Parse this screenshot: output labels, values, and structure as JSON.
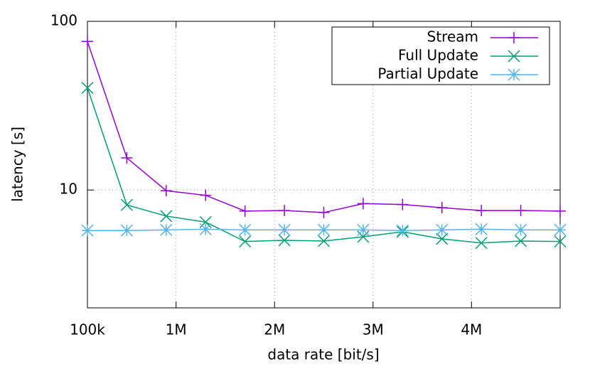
{
  "chart_data": {
    "type": "line",
    "x_label": "data rate [bit/s]",
    "y_label": "latency [s]",
    "x": [
      100000,
      500000,
      900000,
      1300000,
      1700000,
      2100000,
      2500000,
      2900000,
      3300000,
      3700000,
      4100000,
      4500000,
      4900000
    ],
    "series": [
      {
        "name": "Stream",
        "color": "#9400d3",
        "marker": "plus",
        "values": [
          76,
          15.5,
          9.9,
          9.3,
          7.5,
          7.55,
          7.35,
          8.3,
          8.2,
          7.85,
          7.55,
          7.55,
          7.5
        ]
      },
      {
        "name": "Full Update",
        "color": "#009e73",
        "marker": "cross",
        "values": [
          40.3,
          8.15,
          7.0,
          6.45,
          4.95,
          5.03,
          4.98,
          5.28,
          5.65,
          5.13,
          4.85,
          4.98,
          4.95
        ]
      },
      {
        "name": "Partial Update",
        "color": "#56b4e9",
        "marker": "star",
        "values": [
          5.75,
          5.75,
          5.8,
          5.85,
          5.8,
          5.8,
          5.8,
          5.8,
          5.75,
          5.8,
          5.85,
          5.8,
          5.8
        ]
      }
    ],
    "xlim": [
      100000,
      4900000
    ],
    "xticks": [
      {
        "value": 100000,
        "label": "100k"
      },
      {
        "value": 1000000,
        "label": "1M"
      },
      {
        "value": 2000000,
        "label": "2M"
      },
      {
        "value": 3000000,
        "label": "3M"
      },
      {
        "value": 4000000,
        "label": "4M"
      }
    ],
    "ylim": [
      2,
      100
    ],
    "yticks": [
      10,
      100
    ],
    "y_scale": "log",
    "grid": true,
    "legend": "top-right"
  }
}
